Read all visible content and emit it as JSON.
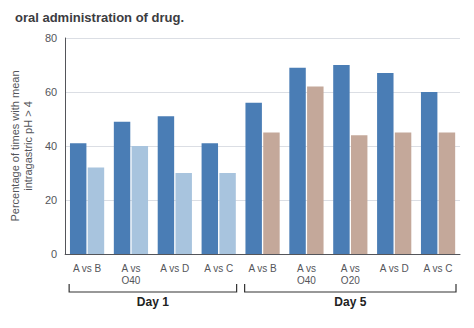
{
  "chart_data": {
    "type": "bar",
    "title": "oral administration of drug.",
    "ylabel": "Percentage of times with mean\nintragastric pH > 4",
    "categories": [
      "A vs B",
      "A vs\nO40",
      "A vs D",
      "A vs C",
      "A vs B",
      "A vs\nO40",
      "A vs\nO20",
      "A vs D",
      "A vs C"
    ],
    "series": [
      {
        "color": "#4a7db5",
        "values": [
          41,
          49,
          51,
          41,
          56,
          69,
          70,
          67,
          60
        ]
      },
      {
        "colors": [
          "#a8c4de",
          "#a8c4de",
          "#a8c4de",
          "#a8c4de",
          "#c4a89a",
          "#c4a89a",
          "#c4a89a",
          "#c4a89a",
          "#c4a89a"
        ],
        "values": [
          32,
          40,
          30,
          30,
          45,
          62,
          44,
          45,
          45
        ]
      }
    ],
    "annotations": [
      "Day 1",
      "Day 5"
    ],
    "ylim": [
      0,
      80
    ],
    "yticks": [
      0,
      20,
      40,
      60,
      80
    ],
    "grid": true
  }
}
